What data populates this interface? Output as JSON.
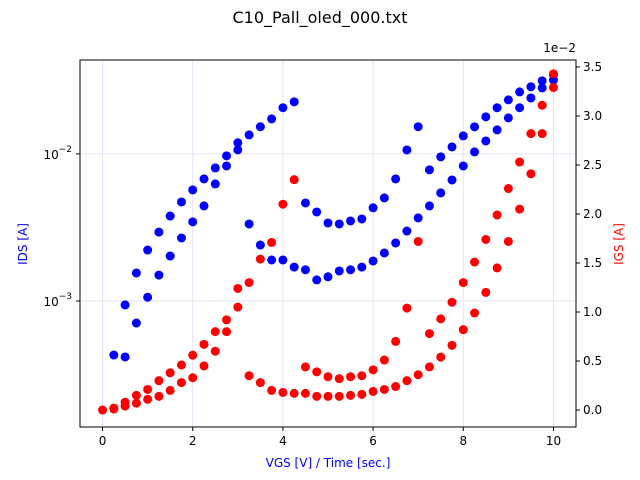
{
  "chart_data": {
    "type": "scatter",
    "title": "C10_Pall_oled_000.txt",
    "xlabel": "VGS [V] / Time [sec.]",
    "ylabel": "IDS [A]",
    "y2label": "IGS [A]",
    "y2_offset_text": "1e−2",
    "xlabel_color": "#0000ff",
    "ylabel_color": "#0000ff",
    "y2label_color": "#ff0000",
    "grid": true,
    "grid_color": "#e3e3fb",
    "ylog": true,
    "xlim": [
      -0.5,
      10.5
    ],
    "xticks": [
      0,
      2,
      4,
      6,
      8,
      10
    ],
    "ylim": [
      0.000139,
      0.0435
    ],
    "yticks": [
      {
        "value": 0.001,
        "label": "10",
        "exponent": "−3"
      },
      {
        "value": 0.01,
        "label": "10",
        "exponent": "−2"
      }
    ],
    "y2lim": [
      -0.173,
      3.571
    ],
    "y2ticks": [
      {
        "value": 0,
        "label": "0.0"
      },
      0.5,
      {
        "value": 1,
        "label": "1.0"
      },
      1.5,
      {
        "value": 2,
        "label": "2.0"
      },
      2.5,
      {
        "value": 3,
        "label": "3.0"
      },
      3.5
    ],
    "series": [
      {
        "color": "#0000ff",
        "axis": "y",
        "x": [
          0.25,
          0.5,
          0.75,
          1,
          1.25,
          1.5,
          1.75,
          2,
          2.25,
          2.5,
          2.75,
          3,
          3.25,
          3.5,
          3.75,
          4,
          4.25,
          4.5,
          4.75,
          5,
          5.25,
          5.5,
          5.75,
          6,
          6.25,
          6.5,
          6.75,
          7,
          7.25,
          7.5,
          7.75,
          8,
          8.25,
          8.5,
          8.75,
          9,
          9.25,
          9.5,
          9.75,
          10
        ],
        "values": [
          0.000429,
          0.00094,
          0.00155,
          0.00222,
          0.00294,
          0.00378,
          0.00471,
          0.00569,
          0.00676,
          0.00803,
          0.0097,
          0.0119,
          0.01346,
          0.0153,
          0.0173,
          0.0206,
          0.0226,
          0.00464,
          0.00403,
          0.00339,
          0.00334,
          0.0035,
          0.00361,
          0.0043,
          0.00502,
          0.00676,
          0.01064,
          0.0153,
          0.00779,
          0.00955,
          0.01116,
          0.01325,
          0.01527,
          0.01786,
          0.0206,
          0.0233,
          0.0264,
          0.0286,
          0.0314,
          0.0345
        ]
      },
      {
        "color": "#0000ff",
        "axis": "y",
        "x": [
          0.5,
          0.75,
          1,
          1.25,
          1.5,
          1.75,
          2,
          2.25,
          2.5,
          2.75,
          3,
          3.25,
          3.5,
          3.75,
          4,
          4.25,
          4.5,
          4.75,
          5,
          5.25,
          5.5,
          5.75,
          6,
          6.25,
          6.5,
          6.75,
          7,
          7.25,
          7.5,
          7.75,
          8,
          8.25,
          8.5,
          8.75,
          9,
          9.25,
          9.5,
          9.75,
          10
        ],
        "values": [
          0.000416,
          0.000708,
          0.00106,
          0.0015,
          0.00202,
          0.00268,
          0.00345,
          0.00443,
          0.00625,
          0.00828,
          0.01065,
          0.00334,
          0.0024,
          0.0019,
          0.0019,
          0.0017,
          0.00163,
          0.00139,
          0.00146,
          0.0016,
          0.00163,
          0.0017,
          0.00187,
          0.00212,
          0.00248,
          0.00299,
          0.00367,
          0.00443,
          0.00543,
          0.00665,
          0.00828,
          0.01032,
          0.01225,
          0.01456,
          0.01757,
          0.0206,
          0.024,
          0.0281,
          0.0318
        ]
      },
      {
        "color": "#ff0000",
        "axis": "y2",
        "x": [
          0,
          0.25,
          0.5,
          0.75,
          1,
          1.25,
          1.5,
          1.75,
          2,
          2.25,
          2.5,
          2.75,
          3,
          3.25,
          3.5,
          3.75,
          4,
          4.25,
          4.5,
          4.75,
          5,
          5.25,
          5.5,
          5.75,
          6,
          6.25,
          6.5,
          6.75,
          7,
          7.25,
          7.5,
          7.75,
          8,
          8.25,
          8.5,
          8.75,
          9,
          9.25,
          9.5,
          9.75,
          10
        ],
        "values": [
          0,
          0.02,
          0.08,
          0.15,
          0.21,
          0.3,
          0.38,
          0.46,
          0.56,
          0.67,
          0.8,
          0.92,
          1.05,
          1.3,
          1.54,
          1.71,
          2.1,
          2.35,
          0.44,
          0.39,
          0.34,
          0.32,
          0.34,
          0.35,
          0.41,
          0.51,
          0.7,
          1.04,
          1.72,
          0.78,
          0.93,
          1.1,
          1.3,
          1.51,
          1.74,
          1.99,
          2.26,
          2.53,
          2.82,
          3.11,
          3.43
        ]
      },
      {
        "color": "#ff0000",
        "axis": "y2",
        "x": [
          0.25,
          0.5,
          0.75,
          1,
          1.25,
          1.5,
          1.75,
          2,
          2.25,
          2.5,
          2.75,
          3,
          3.25,
          3.5,
          3.75,
          4,
          4.25,
          4.5,
          4.75,
          5,
          5.25,
          5.5,
          5.75,
          6,
          6.25,
          6.5,
          6.75,
          7,
          7.25,
          7.5,
          7.75,
          8,
          8.25,
          8.5,
          8.75,
          9,
          9.25,
          9.5,
          9.75,
          10
        ],
        "values": [
          0.01,
          0.04,
          0.07,
          0.11,
          0.14,
          0.2,
          0.28,
          0.33,
          0.45,
          0.6,
          0.8,
          1.24,
          0.35,
          0.28,
          0.2,
          0.18,
          0.17,
          0.17,
          0.14,
          0.14,
          0.14,
          0.15,
          0.16,
          0.19,
          0.21,
          0.24,
          0.3,
          0.36,
          0.44,
          0.54,
          0.66,
          0.82,
          0.99,
          1.2,
          1.45,
          1.72,
          2.05,
          2.41,
          2.82,
          3.29
        ]
      }
    ]
  }
}
